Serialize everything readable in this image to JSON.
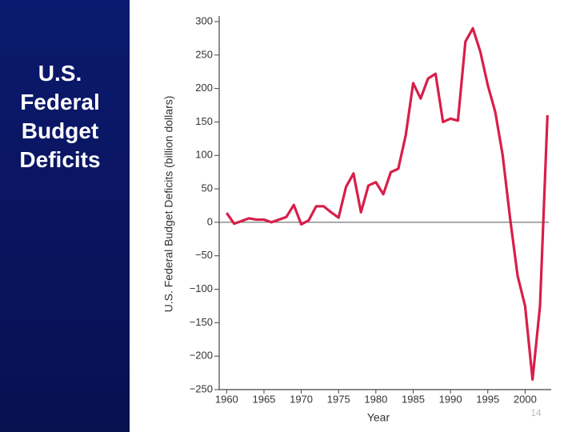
{
  "chart_data": {
    "type": "line",
    "title": "U.S. Federal Budget Deficits",
    "y_label": "U.S. Federal Budget Deficits (billion dollars)",
    "x_label": "Year",
    "x": [
      1960,
      1961,
      1962,
      1963,
      1964,
      1965,
      1966,
      1967,
      1968,
      1969,
      1970,
      1971,
      1972,
      1973,
      1974,
      1975,
      1976,
      1977,
      1978,
      1979,
      1980,
      1981,
      1982,
      1983,
      1984,
      1985,
      1986,
      1987,
      1988,
      1989,
      1990,
      1991,
      1992,
      1993,
      1994,
      1995,
      1996,
      1997,
      1998,
      1999,
      2000,
      2001,
      2002,
      2003
    ],
    "series": [
      {
        "name": "Deficit",
        "color": "#d81e4a",
        "values": [
          14,
          -2,
          2,
          6,
          4,
          4,
          0,
          4,
          8,
          26,
          -3,
          3,
          24,
          24,
          15,
          7,
          53,
          73,
          15,
          55,
          60,
          42,
          75,
          80,
          130,
          208,
          185,
          215,
          222,
          150,
          155,
          152,
          270,
          290,
          255,
          205,
          165,
          100,
          5,
          -80,
          -125,
          -235,
          -125,
          160
        ]
      }
    ],
    "xlim": [
      1959,
      2003.5
    ],
    "xticks": [
      1960,
      1965,
      1970,
      1975,
      1980,
      1985,
      1990,
      1995,
      2000
    ],
    "ylim": [
      -250,
      300
    ],
    "yticks": [
      300,
      250,
      200,
      150,
      100,
      50,
      0,
      {
        "value": -50,
        "label": "−50"
      },
      {
        "value": -100,
        "label": "−100"
      },
      {
        "value": -150,
        "label": "−150"
      },
      {
        "value": -200,
        "label": "−200"
      },
      {
        "value": -250,
        "label": "−250"
      }
    ],
    "zero_line": true
  },
  "slide": {
    "page_number": "14"
  }
}
